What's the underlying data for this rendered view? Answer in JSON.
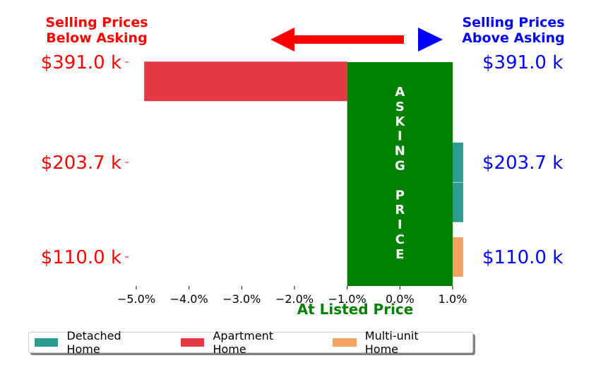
{
  "header": {
    "left_title_line1": "Selling Prices",
    "left_title_line2": "Below Asking",
    "right_title_line1": "Selling Prices",
    "right_title_line2": "Above Asking"
  },
  "colors": {
    "below": "#ff0000",
    "above": "#0000ff",
    "asking": "#008000"
  },
  "asking_band": {
    "letters": [
      "A",
      "S",
      "K",
      "I",
      "N",
      "G",
      "",
      "P",
      "R",
      "I",
      "C",
      "E"
    ],
    "xmin": -1.0,
    "xmax": 1.0
  },
  "xaxis_label": "At Listed Price",
  "chart_data": {
    "type": "bar",
    "orientation": "horizontal",
    "xlim": [
      -5.0,
      1.0
    ],
    "xticks": [
      -5.0,
      -4.0,
      -3.0,
      -2.0,
      -1.0,
      0.0,
      1.0
    ],
    "xtick_labels": [
      "−5.0%",
      "−4.0%",
      "−3.0%",
      "−2.0%",
      "−1.0%",
      "0.0%",
      "1.0%"
    ],
    "left_ytick_labels": [
      "$391.0 k",
      "$203.7 k",
      "$110.0 k"
    ],
    "right_ytick_labels": [
      "$391.0 k",
      "$203.7 k",
      "$110.0 k"
    ],
    "series": [
      {
        "name": "Detached Home",
        "color": "#2a9d8f",
        "bars": [
          {
            "value": 1.2,
            "price_k": 203.7
          },
          {
            "value": 1.2,
            "price_k": 157
          }
        ]
      },
      {
        "name": "Apartment Home",
        "color": "#e63946",
        "bars": [
          {
            "value": -4.85,
            "price_k": 345
          }
        ]
      },
      {
        "name": "Multi-unit Home",
        "color": "#f4a261",
        "bars": [
          {
            "value": 1.2,
            "price_k": 110.0
          }
        ]
      }
    ],
    "grid": false,
    "legend": "bottom"
  }
}
